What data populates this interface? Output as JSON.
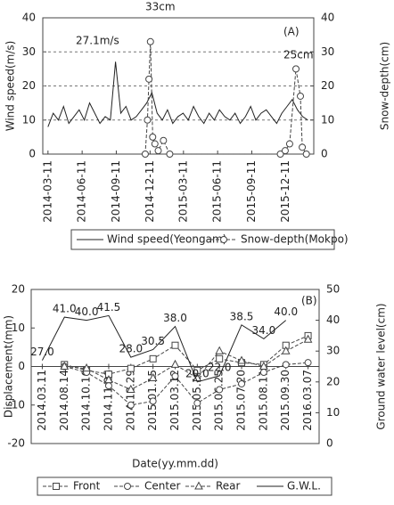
{
  "chart_data": [
    {
      "type": "line",
      "ylabel": "Wind speed(m/s)",
      "y2label": "Snow-depth(cm)",
      "annotations": [
        "(A)",
        "27.1m/s",
        "33cm",
        "25cm"
      ],
      "xlim": [
        "2014-02-25",
        "2016-02-25"
      ],
      "xticks": [
        "2014-03-11",
        "2014-06-11",
        "2014-09-11",
        "2014-12-11",
        "2015-03-11",
        "2015-06-11",
        "2015-09-11",
        "2015-12-11"
      ],
      "ylim": [
        0,
        40
      ],
      "yticks": [
        0,
        10,
        20,
        30,
        40
      ],
      "y2lim": [
        0,
        40
      ],
      "y2ticks": [
        0,
        10,
        20,
        30,
        40
      ],
      "grid": true,
      "series": [
        {
          "name": "Wind speed(Yeongam)",
          "color": "#222222",
          "marker": "none",
          "dash": false,
          "axis": "y",
          "x": [
            "2014-03-11",
            "2014-03-25",
            "2014-04-08",
            "2014-04-22",
            "2014-05-06",
            "2014-05-20",
            "2014-06-03",
            "2014-06-17",
            "2014-07-01",
            "2014-07-15",
            "2014-07-29",
            "2014-08-12",
            "2014-08-26",
            "2014-09-09",
            "2014-09-23",
            "2014-10-07",
            "2014-10-21",
            "2014-11-04",
            "2014-11-18",
            "2014-12-02",
            "2014-12-16",
            "2014-12-30",
            "2015-01-13",
            "2015-01-27",
            "2015-02-10",
            "2015-02-24",
            "2015-03-10",
            "2015-03-24",
            "2015-04-07",
            "2015-04-21",
            "2015-05-05",
            "2015-05-19",
            "2015-06-02",
            "2015-06-16",
            "2015-06-30",
            "2015-07-14",
            "2015-07-28",
            "2015-08-11",
            "2015-08-25",
            "2015-09-08",
            "2015-09-22",
            "2015-10-06",
            "2015-10-20",
            "2015-11-03",
            "2015-11-17",
            "2015-12-01",
            "2015-12-15",
            "2015-12-29",
            "2016-01-12",
            "2016-01-26",
            "2016-02-09"
          ],
          "values": [
            8,
            12,
            10,
            14,
            9,
            11,
            13,
            10,
            15,
            12,
            9,
            11,
            10,
            27.1,
            12,
            14,
            10,
            11,
            13,
            15,
            18,
            12,
            10,
            13,
            9,
            11,
            12,
            10,
            14,
            11,
            9,
            12,
            10,
            13,
            11,
            10,
            12,
            9,
            11,
            14,
            10,
            12,
            13,
            11,
            9,
            12,
            14,
            16,
            13,
            11,
            10
          ]
        },
        {
          "name": "Snow-depth(Mokpo)",
          "color": "#444444",
          "marker": "circle",
          "dash": true,
          "axis": "y2",
          "x": [
            "2014-11-28",
            "2014-12-04",
            "2014-12-08",
            "2014-12-12",
            "2014-12-18",
            "2014-12-24",
            "2015-01-02",
            "2015-01-16",
            "2015-02-02",
            "2015-11-27",
            "2015-12-10",
            "2015-12-22",
            "2016-01-08",
            "2016-01-20",
            "2016-01-25",
            "2016-02-05"
          ],
          "values": [
            0,
            10,
            22,
            33,
            5,
            3,
            1,
            4,
            0,
            0,
            1,
            3,
            25,
            17,
            2,
            0
          ]
        }
      ]
    },
    {
      "type": "line",
      "ylabel": "Displacement(mm)",
      "y2label": "Ground water level(cm)",
      "xlabel": "Date(yy.mm.dd)",
      "annotations": [
        "(B)"
      ],
      "categories": [
        "2014.03.11",
        "2014.08.14",
        "2014.10.16",
        "2014.11.26",
        "2014.12.29",
        "2015.01.15",
        "2015.03.12",
        "2015.05.19",
        "2015.06.25",
        "2015.07.20",
        "2015.08.11",
        "2015.09.30",
        "2016.03.07"
      ],
      "ylim": [
        -20,
        20
      ],
      "yticks": [
        -20,
        -10,
        0,
        10,
        20
      ],
      "y2lim": [
        0,
        50
      ],
      "y2ticks": [
        0,
        10,
        20,
        30,
        40,
        50
      ],
      "grid": false,
      "series": [
        {
          "name": "Front",
          "color": "#444444",
          "marker": "square",
          "dash": true,
          "axis": "y",
          "values": [
            null,
            0.5,
            -1.0,
            -2.0,
            -0.5,
            2.0,
            5.5,
            -1.0,
            2.0,
            1.0,
            0.5,
            5.5,
            8.0
          ]
        },
        {
          "name": "Center",
          "color": "#444444",
          "marker": "circle",
          "dash": true,
          "axis": "y",
          "values": [
            null,
            0,
            -1.5,
            -5.0,
            -10.0,
            -9.0,
            -2.5,
            -9.5,
            -6.0,
            -4.5,
            -1.5,
            0.5,
            1.0
          ]
        },
        {
          "name": "Rear",
          "color": "#444444",
          "marker": "triangle",
          "dash": true,
          "axis": "y",
          "values": [
            null,
            0,
            -0.5,
            -3.5,
            -6.0,
            -3.0,
            0.5,
            -3.0,
            4.0,
            1.5,
            0,
            4.0,
            7.0
          ]
        },
        {
          "name": "G.W.L.",
          "color": "#222222",
          "marker": "none",
          "dash": false,
          "axis": "y2",
          "values": [
            27.0,
            41.0,
            40.0,
            41.5,
            28.0,
            30.5,
            38.0,
            20.0,
            22.0,
            38.5,
            34.0,
            40.0,
            null
          ],
          "value_labels": [
            "27.0",
            "41.0",
            "40.0",
            "41.5",
            "28.0",
            "30.5",
            "38.0",
            "20.0",
            "22.0",
            "38.5",
            "34.0",
            "40.0",
            null
          ]
        }
      ]
    }
  ]
}
